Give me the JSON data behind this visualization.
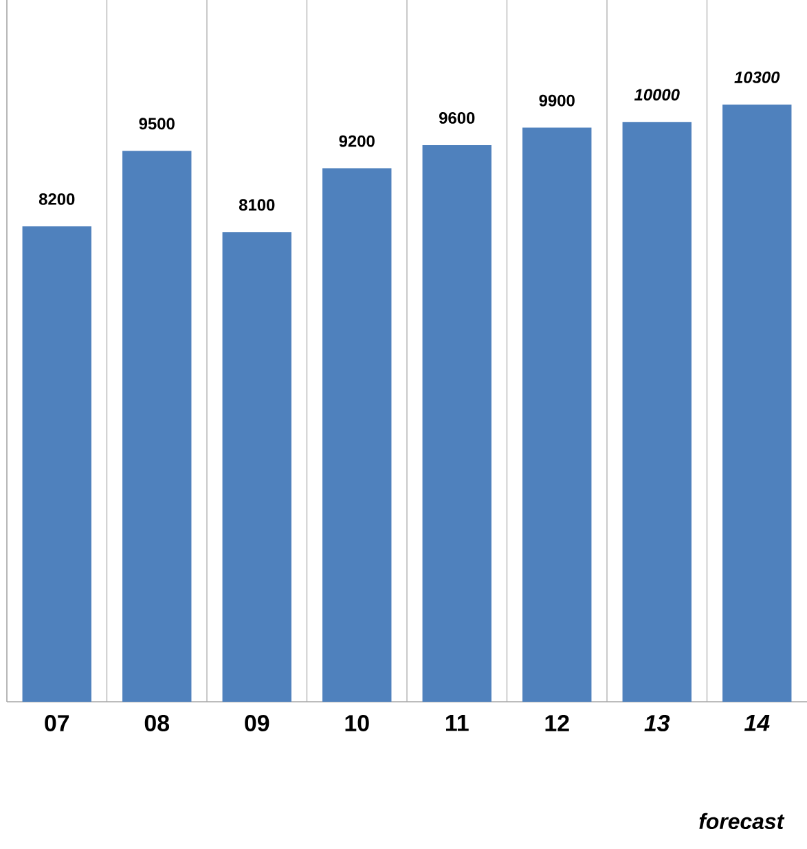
{
  "chart_data": {
    "type": "bar",
    "categories": [
      "07",
      "08",
      "09",
      "10",
      "11",
      "12",
      "*13*",
      "*14*"
    ],
    "values": [
      8200,
      9500,
      8100,
      9200,
      9600,
      9900,
      10000,
      10300
    ],
    "value_labels": [
      "8200",
      "9500",
      "8100",
      "9200",
      "9600",
      "9900",
      "*10000*",
      "*10300*"
    ],
    "color": "#4f81bd",
    "grid": "x",
    "annotations": [
      "*forecast*"
    ]
  }
}
